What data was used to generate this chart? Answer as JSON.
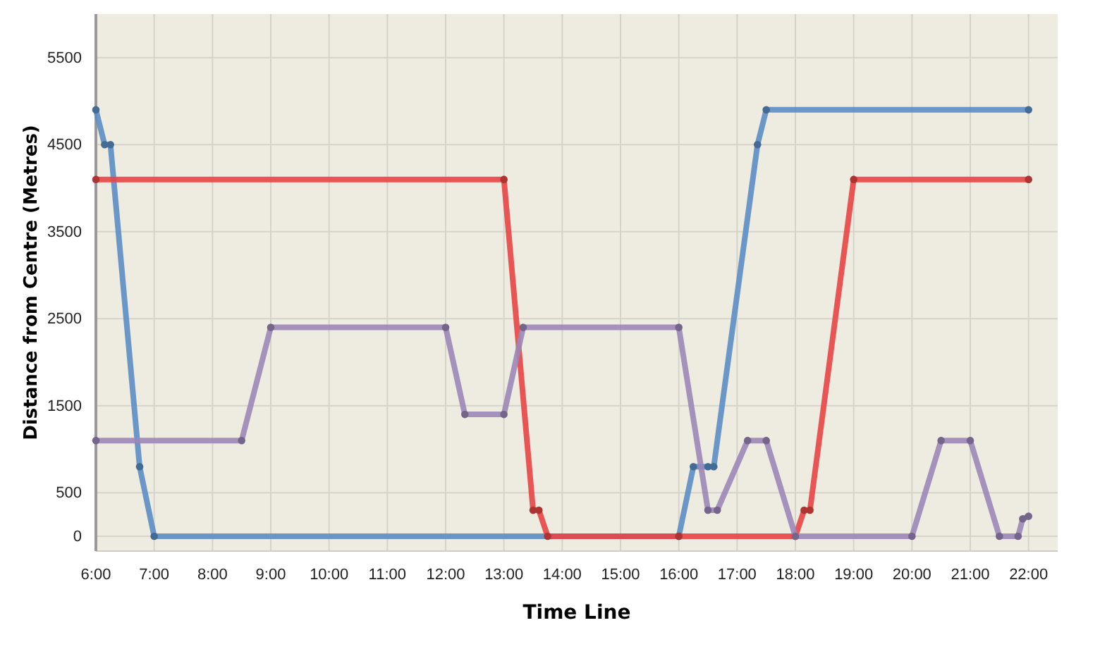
{
  "chart_data": {
    "type": "line",
    "xlabel": "Time Line",
    "ylabel": "Distance from Centre (Metres)",
    "xlim": [
      6,
      22.5
    ],
    "ylim": [
      -170,
      6000
    ],
    "xticks": [
      {
        "value": 6,
        "label": "6:00"
      },
      {
        "value": 7,
        "label": "7:00"
      },
      {
        "value": 8,
        "label": "8:00"
      },
      {
        "value": 9,
        "label": "9:00"
      },
      {
        "value": 10,
        "label": "10:00"
      },
      {
        "value": 11,
        "label": "11:00"
      },
      {
        "value": 12,
        "label": "12:00"
      },
      {
        "value": 13,
        "label": "13:00"
      },
      {
        "value": 14,
        "label": "14:00"
      },
      {
        "value": 15,
        "label": "15:00"
      },
      {
        "value": 16,
        "label": "16:00"
      },
      {
        "value": 17,
        "label": "17:00"
      },
      {
        "value": 18,
        "label": "18:00"
      },
      {
        "value": 19,
        "label": "19:00"
      },
      {
        "value": 20,
        "label": "20:00"
      },
      {
        "value": 21,
        "label": "21:00"
      },
      {
        "value": 22,
        "label": "22:00"
      }
    ],
    "yticks": [
      0,
      500,
      1500,
      2500,
      3500,
      4500,
      5500
    ],
    "grid": true,
    "marker": "circle",
    "line_style": "solid",
    "series": [
      {
        "color": "#5b8ec4",
        "x": [
          6,
          6.15,
          6.25,
          6.75,
          7,
          16,
          16.25,
          16.5,
          16.6,
          17.35,
          17.5,
          22
        ],
        "values": [
          4900,
          4500,
          4500,
          800,
          0,
          0,
          800,
          800,
          800,
          4500,
          4900,
          4900
        ]
      },
      {
        "color": "#e84545",
        "x": [
          6,
          13,
          13.5,
          13.6,
          13.75,
          16,
          18,
          18.15,
          18.25,
          19,
          22
        ],
        "values": [
          4100,
          4100,
          300,
          300,
          0,
          0,
          0,
          300,
          300,
          4100,
          4100
        ]
      },
      {
        "color": "#9b87b8",
        "x": [
          6,
          8.5,
          9,
          12,
          12.33,
          13,
          13.33,
          16,
          16.5,
          16.66,
          17.18,
          17.5,
          18,
          20,
          20.5,
          21,
          21.5,
          21.82,
          21.9,
          22
        ],
        "values": [
          1100,
          1100,
          2400,
          2400,
          1400,
          1400,
          2400,
          2400,
          300,
          300,
          1100,
          1100,
          0,
          0,
          1100,
          1100,
          0,
          0,
          200,
          230
        ]
      }
    ]
  }
}
